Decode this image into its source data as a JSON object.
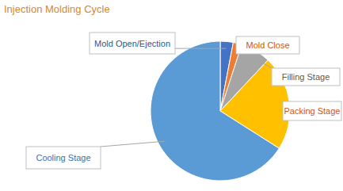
{
  "chart_data": {
    "type": "pie",
    "title": "Injection Molding Cycle",
    "categories": [
      "Mold Open/Ejection",
      "Mold Close",
      "Filling Stage",
      "Packing Stage",
      "Cooling Stage"
    ],
    "values": [
      3,
      2,
      7,
      22,
      66
    ],
    "colors": [
      "#4472c4",
      "#ed7d31",
      "#a5a5a5",
      "#ffc000",
      "#5b9bd5"
    ]
  }
}
